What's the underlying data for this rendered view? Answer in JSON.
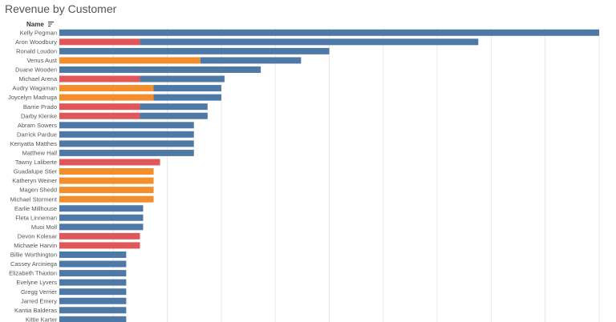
{
  "title": "Revenue by Customer",
  "header": {
    "name_label": "Name"
  },
  "colors": {
    "blue": "#4e79a7",
    "red": "#e15759",
    "orange": "#f28e2b",
    "grid": "#e8e8e8"
  },
  "chart_data": {
    "type": "bar",
    "orientation": "horizontal",
    "stacked": true,
    "title": "Revenue by Customer",
    "categories": [
      "Kelly Pegman",
      "Aron Woodbury",
      "Ronald Loudon",
      "Venus Aust",
      "Duane Wooden",
      "Michael Arena",
      "Audry Wagaman",
      "Joycelyn Madruga",
      "Barrie Prado",
      "Darby Klenke",
      "Abram Sowers",
      "Darrick Pardue",
      "Kenyatta Matthes",
      "Matthew Hall",
      "Tawny Laliberte",
      "Guadalupe Stier",
      "Katheryn Weiner",
      "Magen Shedd",
      "Michael Storment",
      "Earlie Millhouse",
      "Fleta Linneman",
      "Muoi Moll",
      "Devon Kolesar",
      "Michaele Harvin",
      "Billie Worthington",
      "Cassey Arciniega",
      "Elizabeth Thaxton",
      "Evelyne Lyvers",
      "Gregg Verrier",
      "Jarred Emery",
      "Kantia Balderas",
      "Kittie Karter"
    ],
    "series": [
      {
        "color": "#e15759",
        "values": [
          0,
          100,
          0,
          0,
          0,
          100,
          0,
          0,
          100,
          100,
          0,
          0,
          0,
          0,
          125,
          0,
          0,
          0,
          0,
          0,
          0,
          0,
          100,
          100,
          0,
          0,
          0,
          0,
          0,
          0,
          0,
          0
        ]
      },
      {
        "color": "#f28e2b",
        "values": [
          0,
          0,
          0,
          175,
          0,
          0,
          117,
          117,
          0,
          0,
          0,
          0,
          0,
          0,
          0,
          117,
          117,
          117,
          117,
          0,
          0,
          0,
          0,
          0,
          0,
          0,
          0,
          0,
          0,
          0,
          0,
          0
        ]
      },
      {
        "color": "#4e79a7",
        "values": [
          670,
          420,
          335,
          125,
          250,
          105,
          84,
          84,
          84,
          84,
          167,
          167,
          167,
          167,
          0,
          0,
          0,
          0,
          0,
          104,
          104,
          104,
          0,
          0,
          83,
          83,
          83,
          83,
          83,
          83,
          83,
          83
        ]
      }
    ],
    "xlim": [
      0,
      670
    ],
    "grid": true,
    "legend": "none"
  }
}
